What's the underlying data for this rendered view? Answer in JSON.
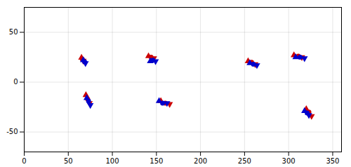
{
  "chart_data": {
    "type": "line",
    "xlim": [
      0,
      360
    ],
    "ylim": [
      -70,
      75
    ],
    "xticks": [
      0,
      50,
      100,
      150,
      200,
      250,
      300,
      350
    ],
    "yticks": [
      -50,
      0,
      50
    ],
    "grid": true,
    "series": [
      {
        "type": "line",
        "color": "#0000CC",
        "x": [
          67,
          68.5,
          69.5
        ],
        "values": [
          22,
          20.5,
          19
        ]
      },
      {
        "type": "line",
        "color": "#CC0000",
        "x": [
          65,
          66,
          67
        ],
        "values": [
          24.5,
          23,
          21.5
        ]
      },
      {
        "type": "line",
        "color": "#0000CC",
        "x": [
          143,
          146,
          149
        ],
        "values": [
          21,
          22,
          21
        ]
      },
      {
        "type": "line",
        "color": "#CC0000",
        "x": [
          141,
          144,
          147
        ],
        "values": [
          26,
          25,
          24
        ]
      },
      {
        "type": "line",
        "color": "#0000CC",
        "x": [
          71,
          73,
          75
        ],
        "values": [
          -16,
          -19,
          -23
        ]
      },
      {
        "type": "line",
        "color": "#CC0000",
        "x": [
          70,
          72,
          74
        ],
        "values": [
          -13,
          -17,
          -21
        ]
      },
      {
        "type": "line",
        "color": "#0000CC",
        "x": [
          153,
          157,
          162
        ],
        "values": [
          -19,
          -21,
          -21
        ]
      },
      {
        "type": "line",
        "color": "#CC0000",
        "x": [
          155,
          160,
          165
        ],
        "values": [
          -19,
          -21,
          -22
        ]
      },
      {
        "type": "line",
        "color": "#0000CC",
        "x": [
          256,
          260,
          264
        ],
        "values": [
          19,
          18,
          17
        ]
      },
      {
        "type": "line",
        "color": "#CC0000",
        "x": [
          254,
          258,
          262
        ],
        "values": [
          21,
          20,
          18
        ]
      },
      {
        "type": "line",
        "color": "#0000CC",
        "x": [
          308,
          313,
          318
        ],
        "values": [
          25,
          25,
          24
        ]
      },
      {
        "type": "line",
        "color": "#CC0000",
        "x": [
          306,
          311,
          315
        ],
        "values": [
          27,
          26,
          25
        ]
      },
      {
        "type": "line",
        "color": "#0000CC",
        "x": [
          318,
          321,
          323
        ],
        "values": [
          -29,
          -31,
          -33
        ]
      },
      {
        "type": "line",
        "color": "#CC0000",
        "x": [
          320,
          323,
          326
        ],
        "values": [
          -27,
          -30,
          -34
        ]
      },
      {
        "type": "scatter",
        "marker": "triangle-up",
        "color": "#CC0000",
        "x": [
          65,
          141,
          70,
          155,
          254,
          306,
          320
        ],
        "values": [
          24.5,
          26,
          -13,
          -19,
          21,
          27,
          -27
        ]
      },
      {
        "type": "scatter",
        "marker": "circle",
        "color": "#CC0000",
        "x": [
          66,
          144,
          72,
          160,
          258,
          311,
          323
        ],
        "values": [
          23,
          25,
          -17,
          -21,
          20,
          26,
          -30
        ]
      },
      {
        "type": "scatter",
        "marker": "triangle-down",
        "color": "#CC0000",
        "x": [
          67,
          147,
          74,
          165,
          262,
          315,
          326
        ],
        "values": [
          21.5,
          24,
          -21,
          -22,
          18,
          25,
          -34
        ]
      },
      {
        "type": "scatter",
        "marker": "triangle-up",
        "color": "#0000CC",
        "x": [
          67,
          143,
          71,
          153,
          256,
          308,
          318
        ],
        "values": [
          22,
          21,
          -16,
          -19,
          19,
          25,
          -29
        ]
      },
      {
        "type": "scatter",
        "marker": "circle",
        "color": "#0000CC",
        "x": [
          68.5,
          146,
          73,
          157,
          260,
          313,
          321
        ],
        "values": [
          20.5,
          22,
          -19,
          -21,
          18,
          25,
          -31
        ]
      },
      {
        "type": "scatter",
        "marker": "triangle-down",
        "color": "#0000CC",
        "x": [
          69.5,
          149,
          75,
          162,
          264,
          318,
          323
        ],
        "values": [
          19,
          21,
          -23,
          -21,
          17,
          24,
          -33
        ]
      }
    ]
  }
}
